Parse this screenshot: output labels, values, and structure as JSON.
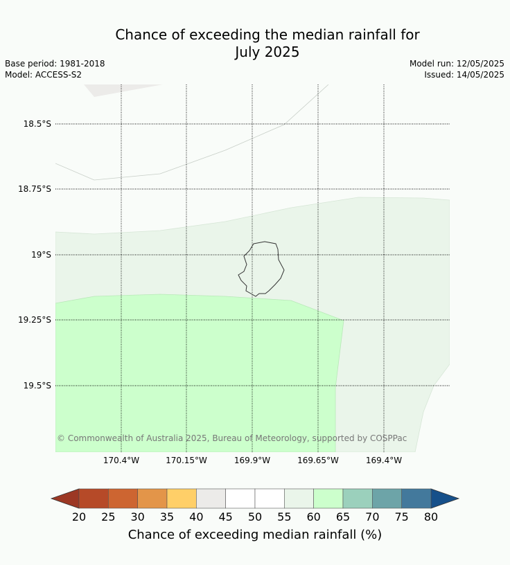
{
  "title": {
    "line1": "Chance of exceeding the median rainfall for",
    "line2": "July 2025"
  },
  "meta": {
    "base_period": "Base period: 1981-2018",
    "model": "Model: ACCESS-S2",
    "model_run": "Model run: 12/05/2025",
    "issued": "Issued: 14/05/2025"
  },
  "map": {
    "lat_labels": [
      "18.5°S",
      "18.75°S",
      "19°S",
      "19.25°S",
      "19.5°S"
    ],
    "lon_labels": [
      "170.4°W",
      "170.15°W",
      "169.9°W",
      "169.65°W",
      "169.4°W"
    ],
    "copyright": "© Commonwealth of Australia 2025, Bureau of Meteorology, supported by COSPPac",
    "region_colors": {
      "40-45": "#ecebe9",
      "45-55": "#ffffff",
      "55-60": "#eaf5ea",
      "60-65": "#ccffcc"
    }
  },
  "colorbar": {
    "ticks": [
      "20",
      "25",
      "30",
      "35",
      "40",
      "45",
      "50",
      "55",
      "60",
      "65",
      "70",
      "75",
      "80"
    ],
    "colors": [
      "#b64a28",
      "#cd6531",
      "#e39549",
      "#ffcf68",
      "#ecebe9",
      "#ffffff",
      "#ffffff",
      "#eaf5ea",
      "#ccffcc",
      "#9bd0bc",
      "#6da4a8",
      "#43799c"
    ],
    "under_color": "#9c3824",
    "over_color": "#16508a",
    "label": "Chance of exceeding median rainfall (%)"
  }
}
